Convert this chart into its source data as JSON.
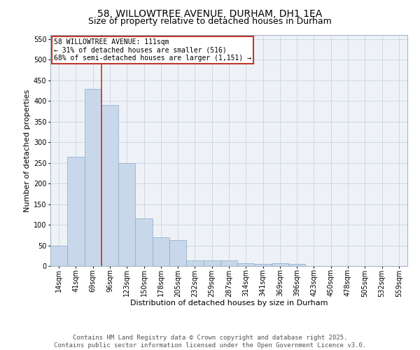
{
  "title": "58, WILLOWTREE AVENUE, DURHAM, DH1 1EA",
  "subtitle": "Size of property relative to detached houses in Durham",
  "xlabel": "Distribution of detached houses by size in Durham",
  "ylabel": "Number of detached properties",
  "categories": [
    "14sqm",
    "41sqm",
    "69sqm",
    "96sqm",
    "123sqm",
    "150sqm",
    "178sqm",
    "205sqm",
    "232sqm",
    "259sqm",
    "287sqm",
    "314sqm",
    "341sqm",
    "369sqm",
    "396sqm",
    "423sqm",
    "450sqm",
    "478sqm",
    "505sqm",
    "532sqm",
    "559sqm"
  ],
  "values": [
    50,
    265,
    430,
    390,
    250,
    116,
    70,
    62,
    14,
    13,
    14,
    6,
    5,
    6,
    5,
    0,
    0,
    0,
    0,
    0,
    0
  ],
  "bar_color": "#c8d8ea",
  "bar_edge_color": "#8aaac8",
  "grid_color": "#c8d4e0",
  "background_color": "#eef2f7",
  "vline_color": "#c0392b",
  "vline_x_idx": 2.5,
  "annotation_text": "58 WILLOWTREE AVENUE: 111sqm\n← 31% of detached houses are smaller (516)\n68% of semi-detached houses are larger (1,151) →",
  "annotation_box_edgecolor": "#c0392b",
  "ylim": [
    0,
    560
  ],
  "yticks": [
    0,
    50,
    100,
    150,
    200,
    250,
    300,
    350,
    400,
    450,
    500,
    550
  ],
  "footer": "Contains HM Land Registry data © Crown copyright and database right 2025.\nContains public sector information licensed under the Open Government Licence v3.0.",
  "title_fontsize": 10,
  "subtitle_fontsize": 9,
  "axis_label_fontsize": 8,
  "tick_fontsize": 7,
  "annotation_fontsize": 7,
  "footer_fontsize": 6.5
}
